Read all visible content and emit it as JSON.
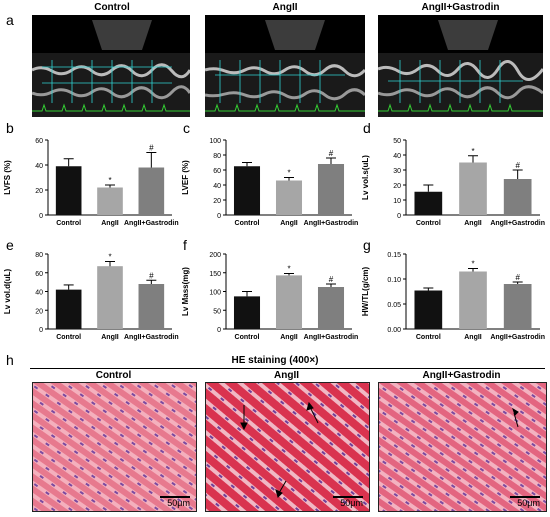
{
  "panels": {
    "a": {
      "letter": "a",
      "groups": [
        "Control",
        "AngII",
        "AngII+Gastrodin"
      ]
    },
    "h": {
      "letter": "h",
      "title": "HE staining (400×)",
      "groups": [
        "Control",
        "AngII",
        "AngII+Gastrodin"
      ],
      "scale_label": "50μm"
    }
  },
  "chart_data": [
    {
      "id": "b",
      "type": "bar",
      "letter": "b",
      "ylabel": "LVFS (%)",
      "categories": [
        "Control",
        "AngII",
        "AngII+Gastrodin"
      ],
      "values": [
        39,
        22,
        38
      ],
      "errors": [
        6,
        2,
        12
      ],
      "marks": [
        "",
        "*",
        "#"
      ],
      "ylim": [
        0,
        60
      ],
      "yticks": [
        0,
        20,
        40,
        60
      ],
      "colors": [
        "#111111",
        "#a6a6a6",
        "#7f7f7f"
      ]
    },
    {
      "id": "c",
      "type": "bar",
      "letter": "c",
      "ylabel": "LVEF (%)",
      "categories": [
        "Control",
        "AngII",
        "AngII+Gastrodin"
      ],
      "values": [
        65,
        46,
        68
      ],
      "errors": [
        5,
        4,
        8
      ],
      "marks": [
        "",
        "*",
        "#"
      ],
      "ylim": [
        0,
        100
      ],
      "yticks": [
        0,
        20,
        40,
        60,
        80,
        100
      ],
      "colors": [
        "#111111",
        "#a6a6a6",
        "#7f7f7f"
      ]
    },
    {
      "id": "d",
      "type": "bar",
      "letter": "d",
      "ylabel": "Lv vol.s(uL)",
      "categories": [
        "Control",
        "AngII",
        "AngII+Gastrodin"
      ],
      "values": [
        15.5,
        35,
        24
      ],
      "errors": [
        4.5,
        4.5,
        6
      ],
      "marks": [
        "",
        "*",
        "#"
      ],
      "ylim": [
        0,
        50
      ],
      "yticks": [
        0,
        10,
        20,
        30,
        40,
        50
      ],
      "colors": [
        "#111111",
        "#a6a6a6",
        "#7f7f7f"
      ]
    },
    {
      "id": "e",
      "type": "bar",
      "letter": "e",
      "ylabel": "Lv vol.d(uL)",
      "categories": [
        "Control",
        "AngII",
        "AngII+Gastrodin"
      ],
      "values": [
        42,
        67,
        48
      ],
      "errors": [
        5,
        5,
        4
      ],
      "marks": [
        "",
        "*",
        "#"
      ],
      "ylim": [
        0,
        80
      ],
      "yticks": [
        0,
        20,
        40,
        60,
        80
      ],
      "colors": [
        "#111111",
        "#a6a6a6",
        "#7f7f7f"
      ]
    },
    {
      "id": "f",
      "type": "bar",
      "letter": "f",
      "ylabel": "Lv Mass(mg)",
      "categories": [
        "Control",
        "AngII",
        "AngII+Gastrodin"
      ],
      "values": [
        87,
        143,
        112
      ],
      "errors": [
        13,
        5,
        8
      ],
      "marks": [
        "",
        "*",
        "#"
      ],
      "ylim": [
        0,
        200
      ],
      "yticks": [
        0,
        50,
        100,
        150,
        200
      ],
      "colors": [
        "#111111",
        "#a6a6a6",
        "#7f7f7f"
      ]
    },
    {
      "id": "g",
      "type": "bar",
      "letter": "g",
      "ylabel": "HW/TL(g/cm)",
      "categories": [
        "Control",
        "AngII",
        "AngII+Gastrodin"
      ],
      "values": [
        0.077,
        0.115,
        0.09
      ],
      "errors": [
        0.005,
        0.006,
        0.004
      ],
      "marks": [
        "",
        "*",
        "#"
      ],
      "ylim": [
        0,
        0.15
      ],
      "yticks": [
        0.0,
        0.05,
        0.1,
        0.15
      ],
      "tickformat": 2,
      "colors": [
        "#111111",
        "#a6a6a6",
        "#7f7f7f"
      ]
    }
  ]
}
